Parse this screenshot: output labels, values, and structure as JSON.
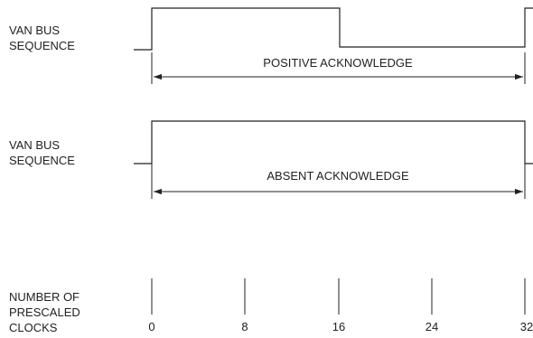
{
  "diagram": {
    "rows": [
      {
        "label_lines": [
          "VAN BUS",
          "SEQUENCE"
        ],
        "span_label": "POSITIVE ACKNOWLEDGE"
      },
      {
        "label_lines": [
          "VAN BUS",
          "SEQUENCE"
        ],
        "span_label": "ABSENT ACKNOWLEDGE"
      }
    ],
    "clock_axis": {
      "label_lines": [
        "NUMBER OF",
        "PRESCALED",
        "CLOCKS"
      ],
      "ticks": [
        "0",
        "8",
        "16",
        "24",
        "32"
      ]
    }
  },
  "colors": {
    "line": "#222222",
    "background": "#ffffff"
  }
}
